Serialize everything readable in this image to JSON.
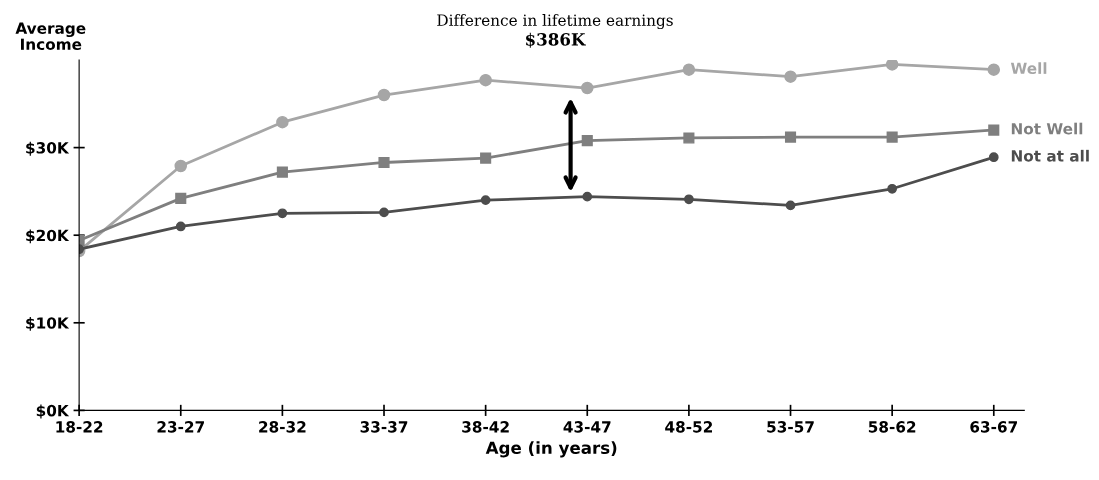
{
  "chart_data": {
    "type": "line",
    "xlabel": "Age (in years)",
    "ylabel": "Average\nIncome",
    "categories": [
      "18-22",
      "23-27",
      "28-32",
      "33-37",
      "38-42",
      "43-47",
      "48-52",
      "53-57",
      "58-62",
      "63-67"
    ],
    "series": [
      {
        "name": "Well",
        "color": "#a6a6a6",
        "marker": "circle",
        "values": [
          18.2,
          27.9,
          32.9,
          36.0,
          37.7,
          36.8,
          38.9,
          38.1,
          39.5,
          38.9
        ]
      },
      {
        "name": "Not Well",
        "color": "#7f7f7f",
        "marker": "square",
        "values": [
          19.4,
          24.2,
          27.2,
          28.3,
          28.8,
          30.8,
          31.1,
          31.2,
          31.2,
          32.0
        ]
      },
      {
        "name": "Not at all",
        "color": "#4d4d4d",
        "marker": "circle",
        "values": [
          18.4,
          21.0,
          22.5,
          22.6,
          24.0,
          24.4,
          24.1,
          23.4,
          25.3,
          28.9
        ]
      }
    ],
    "ylim": [
      0,
      40
    ],
    "yticks": [
      {
        "value": 0,
        "label": "$0K"
      },
      {
        "value": 10,
        "label": "$10K"
      },
      {
        "value": 20,
        "label": "$20K"
      },
      {
        "value": 30,
        "label": "$30K"
      }
    ],
    "grid": false,
    "legend": false,
    "line_style": "solid",
    "annotations": [
      "Difference in lifetime earnings",
      "$386K"
    ]
  }
}
